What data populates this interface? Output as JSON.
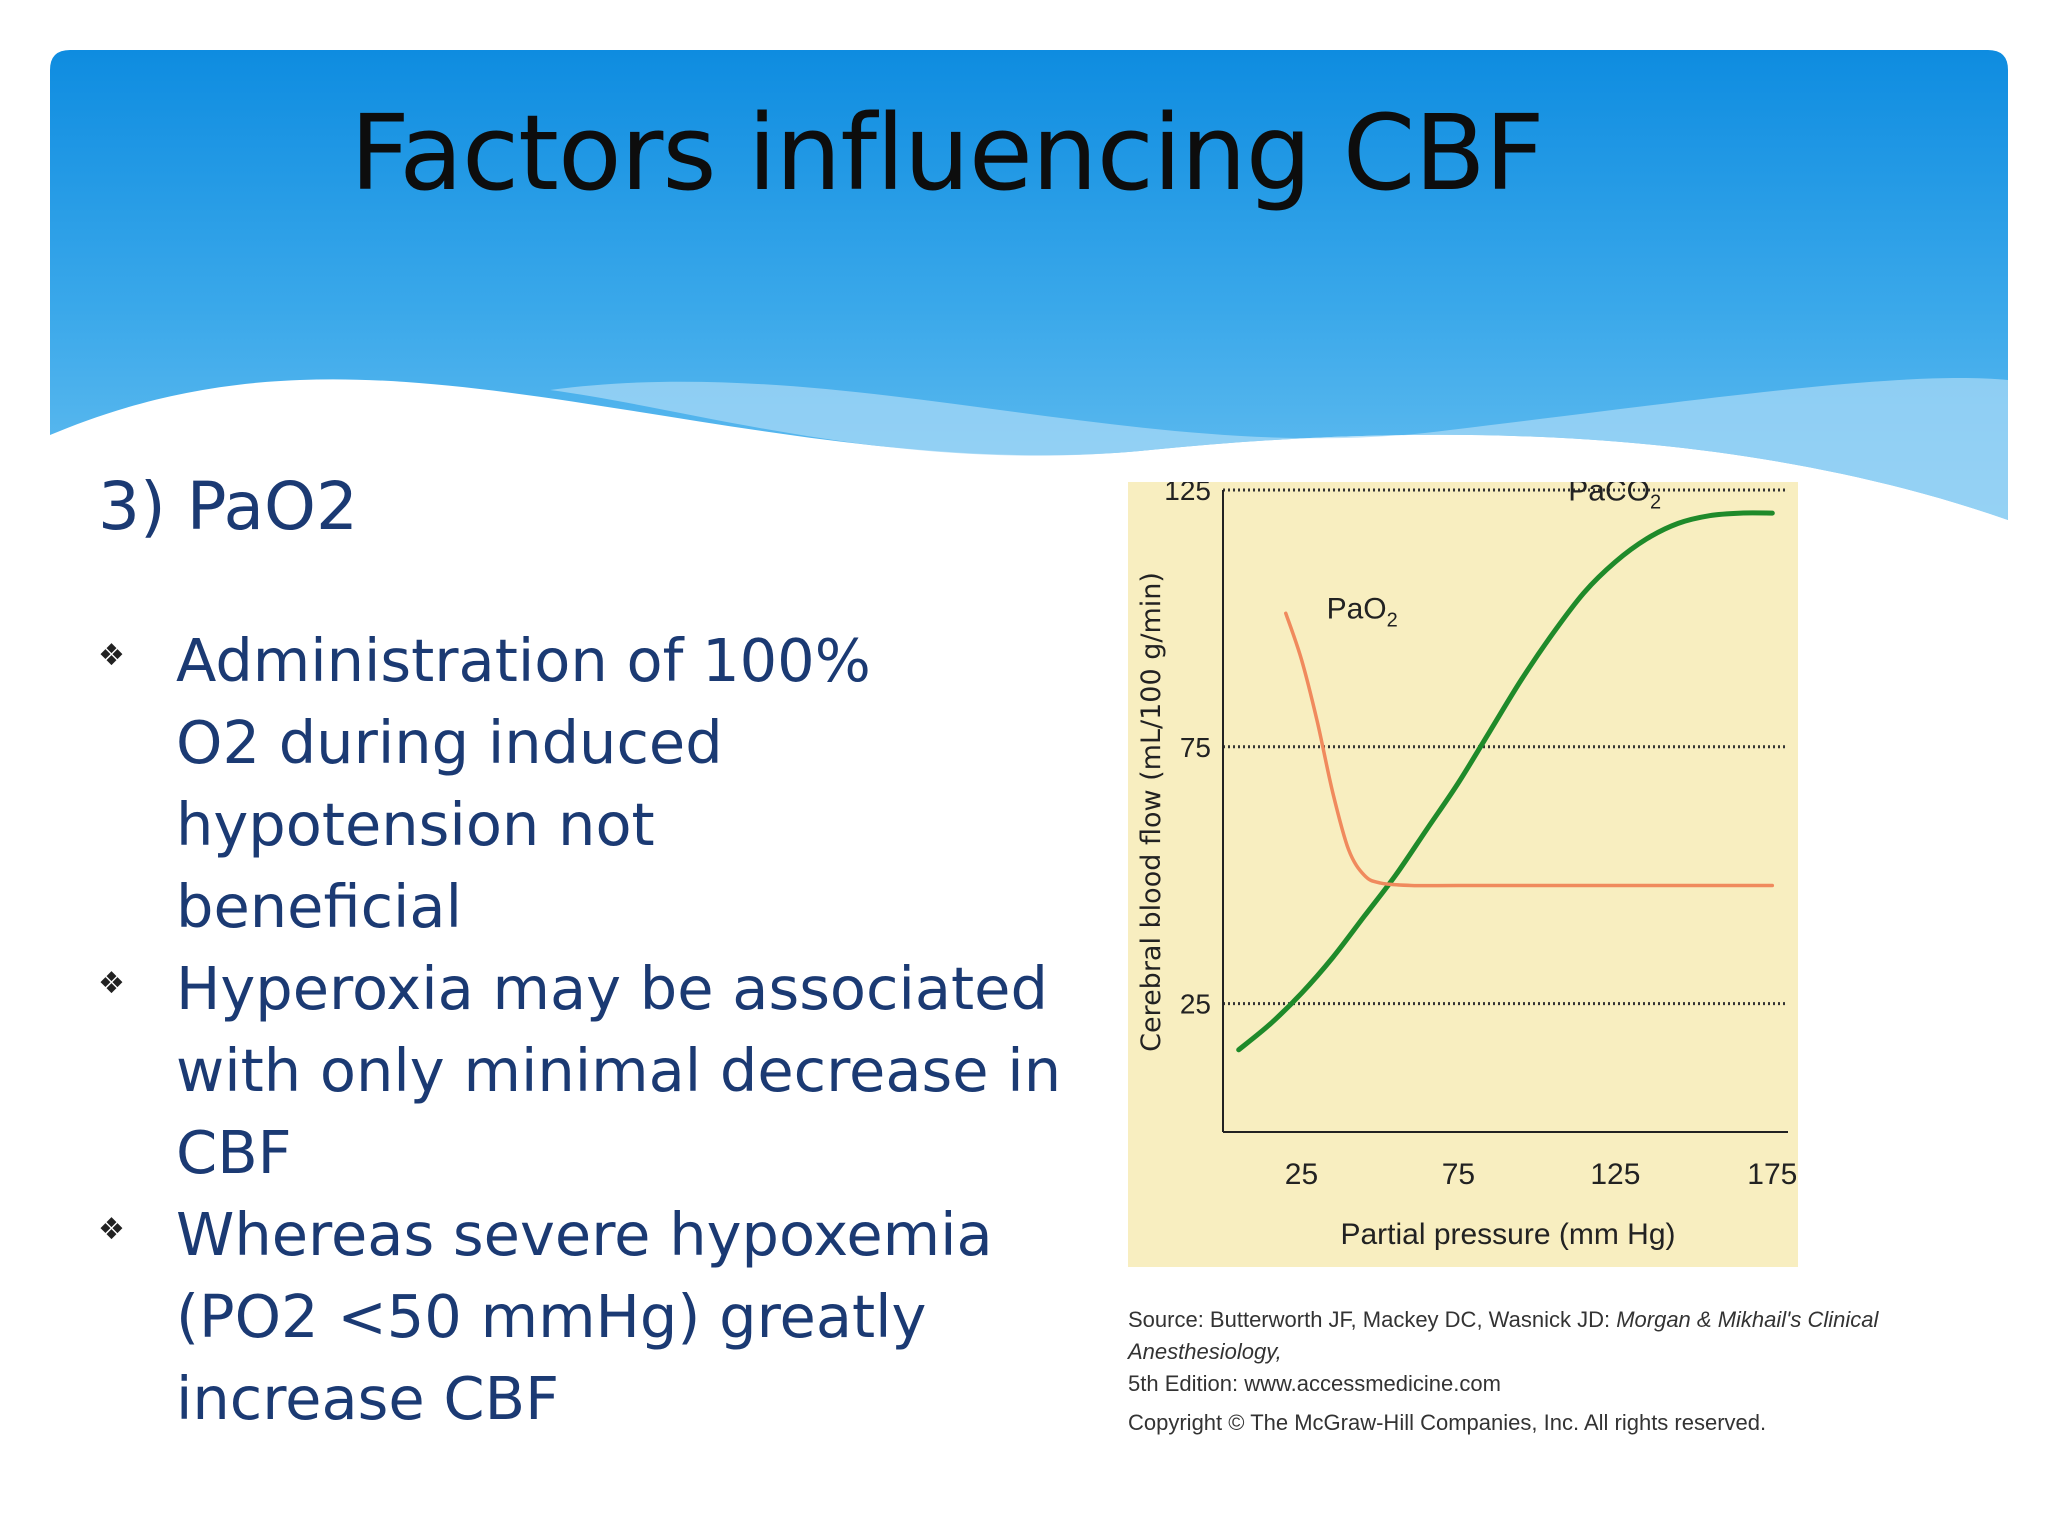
{
  "slide": {
    "title": "Factors influencing CBF",
    "section_heading": "3) PaO2",
    "bullets": [
      "Administration of 100% O2 during induced hypotension not beneficial",
      "Hyperoxia may be associated with only minimal decrease in CBF",
      "Whereas severe hypoxemia (PO2 <50 mmHg) greatly increase CBF"
    ],
    "bullet_glyph": "❖",
    "header_color": "#1a8fdd",
    "text_color": "#1b3a73"
  },
  "figure": {
    "source_prefix": "Source: Butterworth JF, Mackey DC, Wasnick JD: ",
    "source_title": "Morgan & Mikhail's Clinical Anesthesiology,",
    "source_suffix": "5th Edition: www.accessmedicine.com",
    "copyright": "Copyright © The McGraw-Hill Companies, Inc. All rights reserved."
  },
  "chart_data": {
    "type": "line",
    "xlabel": "Partial pressure (mm Hg)",
    "ylabel": "Cerebral blood flow (mL/100 g/min)",
    "xticks": [
      25,
      75,
      125,
      175
    ],
    "yticks": [
      25,
      75,
      125
    ],
    "xlim": [
      0,
      180
    ],
    "ylim": [
      0,
      125
    ],
    "grid": "dotted horizontal at 25, 75, 125",
    "background": "#f8eec0",
    "series": [
      {
        "name": "PaCO2",
        "label_main": "PaCO",
        "label_sub": "2",
        "color": "#1f8a2a",
        "x": [
          5,
          15,
          25,
          35,
          45,
          55,
          65,
          75,
          85,
          95,
          105,
          115,
          125,
          135,
          145,
          155,
          165,
          175
        ],
        "y": [
          16,
          21,
          27,
          34,
          42,
          50,
          59,
          68,
          78,
          88,
          97,
          105,
          111,
          115.5,
          118.5,
          120,
          120.5,
          120.5
        ]
      },
      {
        "name": "PaO2",
        "label_main": "PaO",
        "label_sub": "2",
        "color": "#f08a5d",
        "x": [
          20,
          25,
          30,
          35,
          40,
          45,
          50,
          60,
          75,
          100,
          125,
          150,
          175
        ],
        "y": [
          101,
          92,
          80,
          66,
          55,
          50,
          48.5,
          48,
          48,
          48,
          48,
          48,
          48
        ]
      }
    ]
  }
}
